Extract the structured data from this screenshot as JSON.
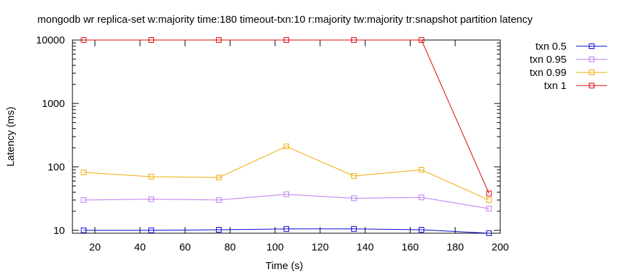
{
  "chart_data": {
    "type": "line",
    "title": "mongodb wr replica-set w:majority time:180 timeout-txn:10 r:majority tw:majority tr:snapshot partition latency",
    "xlabel": "Time (s)",
    "ylabel": "Latency (ms)",
    "xlim": [
      10,
      200
    ],
    "ylim": [
      9,
      10000
    ],
    "yscale": "log",
    "x_ticks": [
      20,
      40,
      60,
      80,
      100,
      120,
      140,
      160,
      180,
      200
    ],
    "y_ticks": [
      10,
      100,
      1000,
      10000
    ],
    "grid": false,
    "legend_position": "top-right outside plot",
    "x": [
      15,
      45,
      75,
      105,
      135,
      165,
      195
    ],
    "series": [
      {
        "name": "txn 0.5",
        "color": "#0000cc",
        "values": [
          10,
          10,
          10.2,
          10.5,
          10.5,
          10.2,
          9
        ]
      },
      {
        "name": "txn 0.95",
        "color": "#bb77ee",
        "values": [
          30,
          31,
          30,
          37,
          32,
          33,
          22
        ]
      },
      {
        "name": "txn 0.99",
        "color": "#f0a800",
        "values": [
          82,
          70,
          68,
          210,
          72,
          90,
          30
        ]
      },
      {
        "name": "txn 1",
        "color": "#dd0000",
        "values": [
          10000,
          10000,
          10000,
          10000,
          10000,
          10000,
          38
        ]
      }
    ]
  }
}
